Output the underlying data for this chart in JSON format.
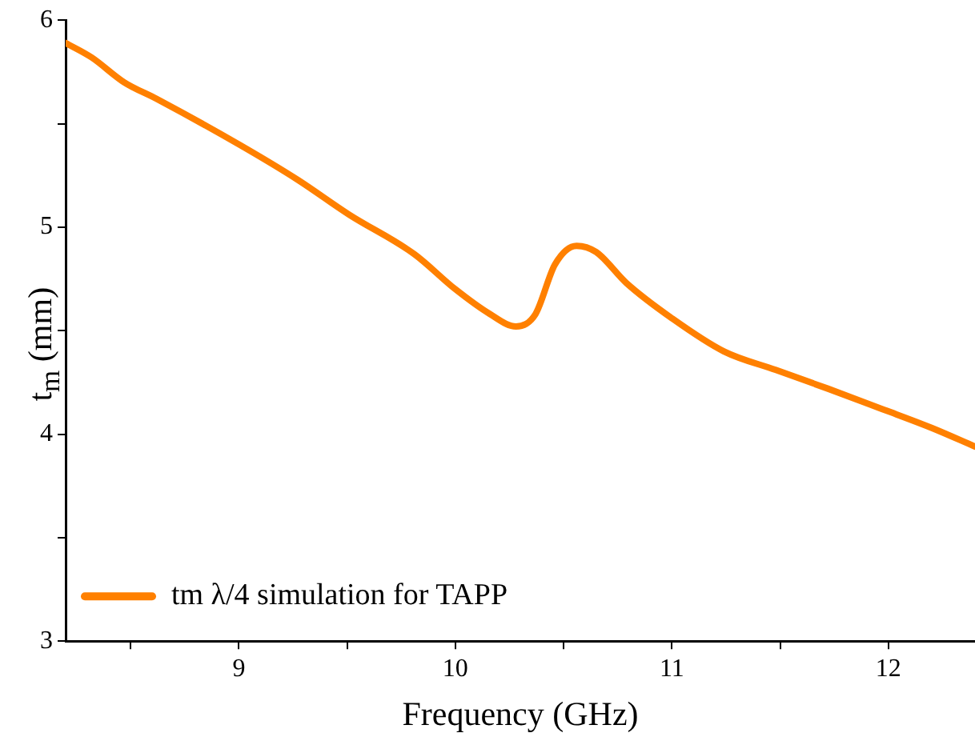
{
  "chart_data": {
    "type": "line",
    "xlabel": "Frequency (GHz)",
    "ylabel": "t$_{m}$ (mm)",
    "x": [
      8.2,
      8.32,
      8.47,
      8.62,
      9.0,
      9.27,
      9.51,
      9.81,
      10.0,
      10.16,
      10.28,
      10.37,
      10.46,
      10.56,
      10.65,
      10.79,
      11.0,
      11.24,
      11.48,
      11.72,
      12.0,
      12.2,
      12.4
    ],
    "series": [
      {
        "name": "tm λ/4 simulation for TAPP",
        "color": "#ff8000",
        "values": [
          5.89,
          5.82,
          5.7,
          5.62,
          5.4,
          5.23,
          5.06,
          4.87,
          4.7,
          4.58,
          4.52,
          4.58,
          4.82,
          4.91,
          4.88,
          4.73,
          4.56,
          4.4,
          4.31,
          4.22,
          4.11,
          4.03,
          3.94
        ]
      }
    ],
    "xlim": [
      8.2,
      12.4
    ],
    "xticks": [
      {
        "value": 8.5,
        "label": null
      },
      9,
      {
        "value": 9.5,
        "label": null
      },
      10,
      {
        "value": 10.5,
        "label": null
      },
      11,
      {
        "value": 11.5,
        "label": null
      },
      12
    ],
    "ylim": [
      3,
      6
    ],
    "yticks": [
      3,
      {
        "value": 3.5,
        "label": null
      },
      4,
      {
        "value": 4.5,
        "label": null
      },
      5,
      {
        "value": 5.5,
        "label": null
      },
      6
    ],
    "grid": false,
    "legend": "bottom left",
    "marker": "none",
    "line_style": "solid"
  }
}
